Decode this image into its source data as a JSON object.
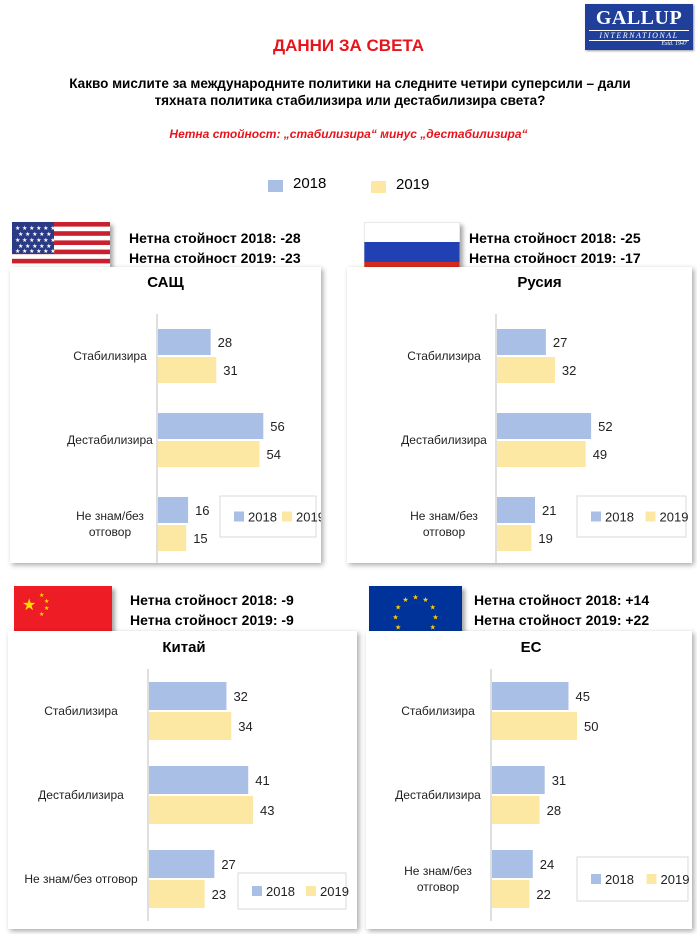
{
  "header": {
    "logo_line1": "GALLUP",
    "logo_line2": "INTERNATIONAL",
    "logo_line3": "Estd. 1947",
    "title": "ДАННИ ЗА СВЕТА",
    "question_line1": "Какво мислите за международните политики на следните четири суперсили – дали",
    "question_line2": "тяхната политика стабилизира или дестабилизира света?",
    "net_definition": "Нетна стойност: „стабилизира“ минус „дестабилизира“"
  },
  "legend": {
    "y2018": "2018",
    "y2019": "2019"
  },
  "colors": {
    "bar2018": "#a9bfe6",
    "bar2019": "#fde8a3",
    "title_red": "#e8141b",
    "logo_blue": "#1f3f9a"
  },
  "panels": [
    {
      "flag_icon": "usa-flag-icon",
      "net_2018": "Нетна стойност  2018: -28",
      "net_2019": "Нетна стойност  2019: -23"
    },
    {
      "flag_icon": "russia-flag-icon",
      "net_2018": "Нетна стойност  2018: -25",
      "net_2019": "Нетна стойност  2019: -17"
    },
    {
      "flag_icon": "china-flag-icon",
      "net_2018": "Нетна стойност  2018: -9",
      "net_2019": "Нетна стойност  2019: -9"
    },
    {
      "flag_icon": "eu-flag-icon",
      "net_2018": "Нетна стойност  2018: +14",
      "net_2019": "Нетна стойност  2019: +22"
    }
  ],
  "chart_data": [
    {
      "type": "bar",
      "title": "САЩ",
      "categories": [
        [
          "Стабилизира"
        ],
        [
          "Дестабилизира"
        ],
        [
          "Не знам/без",
          "отговор"
        ]
      ],
      "series": [
        {
          "name": "2018",
          "values": [
            28,
            56,
            16
          ]
        },
        {
          "name": "2019",
          "values": [
            31,
            54,
            15
          ]
        }
      ],
      "legend": "bottom-right"
    },
    {
      "type": "bar",
      "title": "Русия",
      "categories": [
        [
          "Стабилизира"
        ],
        [
          "Дестабилизира"
        ],
        [
          "Не знам/без",
          "отговор"
        ]
      ],
      "series": [
        {
          "name": "2018",
          "values": [
            27,
            52,
            21
          ]
        },
        {
          "name": "2019",
          "values": [
            32,
            49,
            19
          ]
        }
      ],
      "legend": "bottom-right"
    },
    {
      "type": "bar",
      "title": "Китай",
      "categories": [
        [
          "Стабилизира"
        ],
        [
          "Дестабилизира"
        ],
        [
          "Не знам/без отговор"
        ]
      ],
      "series": [
        {
          "name": "2018",
          "values": [
            32,
            41,
            27
          ]
        },
        {
          "name": "2019",
          "values": [
            34,
            43,
            23
          ]
        }
      ],
      "legend": "bottom-right"
    },
    {
      "type": "bar",
      "title": "ЕС",
      "categories": [
        [
          "Стабилизира"
        ],
        [
          "Дестабилизира"
        ],
        [
          "Не знам/без",
          "отговор"
        ]
      ],
      "series": [
        {
          "name": "2018",
          "values": [
            45,
            31,
            24
          ]
        },
        {
          "name": "2019",
          "values": [
            50,
            28,
            22
          ]
        }
      ],
      "legend": "bottom-right"
    }
  ]
}
